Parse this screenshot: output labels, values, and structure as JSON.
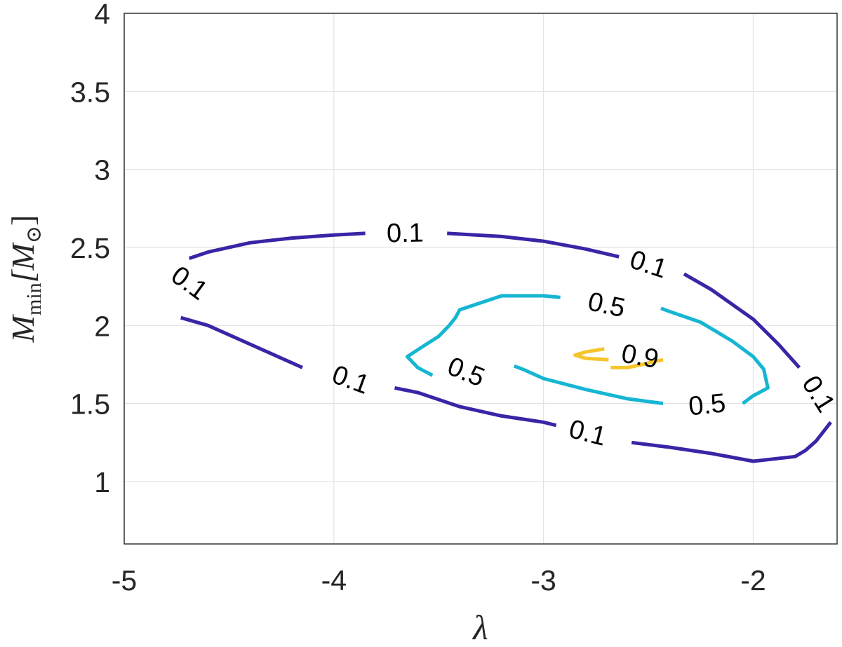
{
  "chart_data": {
    "type": "contour",
    "title": "",
    "xlabel": "λ",
    "ylabel_main": "M",
    "ylabel_sub": "min",
    "ylabel_unit": "[M",
    "ylabel_unit_symbol": "⊙",
    "ylabel_unit_close": "]",
    "xlim": [
      -5,
      -1.6
    ],
    "ylim": [
      0.6,
      4
    ],
    "xticks": [
      -5,
      -4,
      -3,
      -2
    ],
    "xtick_labels": [
      "-5",
      "-4",
      "-3",
      "-2"
    ],
    "yticks": [
      1,
      1.5,
      2,
      2.5,
      3,
      3.5,
      4
    ],
    "ytick_labels": [
      "1",
      "1.5",
      "2",
      "2.5",
      "3",
      "3.5",
      "4"
    ],
    "grid": true,
    "levels": [
      {
        "level": 0.1,
        "label": "0.1",
        "color": "#3b24a6",
        "segments": [
          [
            [
              -4.69,
              2.43
            ],
            [
              -4.6,
              2.47
            ],
            [
              -4.4,
              2.53
            ],
            [
              -4.2,
              2.56
            ],
            [
              -4.0,
              2.58
            ],
            [
              -3.85,
              2.59
            ]
          ],
          [
            [
              -3.46,
              2.59
            ],
            [
              -3.2,
              2.57
            ],
            [
              -3.0,
              2.54
            ],
            [
              -2.8,
              2.49
            ],
            [
              -2.64,
              2.44
            ]
          ],
          [
            [
              -2.33,
              2.33
            ],
            [
              -2.2,
              2.23
            ],
            [
              -2.0,
              2.04
            ],
            [
              -1.88,
              1.88
            ],
            [
              -1.78,
              1.73
            ]
          ],
          [
            [
              -1.63,
              1.38
            ],
            [
              -1.7,
              1.26
            ],
            [
              -1.75,
              1.2
            ],
            [
              -1.8,
              1.16
            ],
            [
              -2.0,
              1.13
            ],
            [
              -2.2,
              1.18
            ],
            [
              -2.4,
              1.22
            ],
            [
              -2.58,
              1.25
            ]
          ],
          [
            [
              -2.94,
              1.36
            ],
            [
              -3.0,
              1.38
            ],
            [
              -3.2,
              1.42
            ],
            [
              -3.4,
              1.48
            ],
            [
              -3.6,
              1.57
            ],
            [
              -3.71,
              1.6
            ]
          ],
          [
            [
              -4.15,
              1.73
            ],
            [
              -4.4,
              1.88
            ],
            [
              -4.6,
              2.0
            ],
            [
              -4.73,
              2.05
            ]
          ]
        ]
      },
      {
        "level": 0.5,
        "label": "0.5",
        "color": "#16b6d3",
        "segments": [
          [
            [
              -3.53,
              1.68
            ],
            [
              -3.6,
              1.73
            ],
            [
              -3.65,
              1.8
            ],
            [
              -3.57,
              1.87
            ],
            [
              -3.5,
              1.93
            ],
            [
              -3.45,
              2.0
            ],
            [
              -3.42,
              2.05
            ],
            [
              -3.4,
              2.1
            ],
            [
              -3.2,
              2.19
            ],
            [
              -3.0,
              2.19
            ],
            [
              -2.92,
              2.18
            ]
          ],
          [
            [
              -2.44,
              2.11
            ],
            [
              -2.4,
              2.09
            ],
            [
              -2.25,
              2.02
            ],
            [
              -2.1,
              1.9
            ],
            [
              -2.0,
              1.8
            ],
            [
              -1.95,
              1.72
            ],
            [
              -1.93,
              1.6
            ],
            [
              -2.0,
              1.55
            ],
            [
              -2.05,
              1.5
            ]
          ],
          [
            [
              -2.43,
              1.5
            ],
            [
              -2.6,
              1.53
            ],
            [
              -2.8,
              1.59
            ],
            [
              -3.0,
              1.66
            ],
            [
              -3.1,
              1.72
            ],
            [
              -3.14,
              1.74
            ]
          ]
        ]
      },
      {
        "level": 0.9,
        "label": "0.9",
        "color": "#f7c52b",
        "segments": [
          [
            [
              -2.69,
              1.78
            ],
            [
              -2.8,
              1.79
            ],
            [
              -2.85,
              1.81
            ],
            [
              -2.8,
              1.83
            ],
            [
              -2.71,
              1.85
            ]
          ],
          [
            [
              -2.68,
              1.73
            ],
            [
              -2.6,
              1.73
            ],
            [
              -2.53,
              1.75
            ],
            [
              -2.47,
              1.77
            ],
            [
              -2.43,
              1.78
            ]
          ]
        ]
      }
    ],
    "contour_labels": [
      {
        "text": "0.1",
        "x": -3.66,
        "y": 2.59,
        "angle": -1
      },
      {
        "text": "0.1",
        "x": -2.5,
        "y": 2.39,
        "angle": 18
      },
      {
        "text": "0.1",
        "x": -4.69,
        "y": 2.27,
        "angle": 36
      },
      {
        "text": "0.1",
        "x": -3.92,
        "y": 1.65,
        "angle": 20
      },
      {
        "text": "0.1",
        "x": -2.79,
        "y": 1.31,
        "angle": 14
      },
      {
        "text": "0.1",
        "x": -1.69,
        "y": 1.56,
        "angle": 58
      },
      {
        "text": "0.5",
        "x": -2.7,
        "y": 2.13,
        "angle": 12
      },
      {
        "text": "0.5",
        "x": -3.37,
        "y": 1.7,
        "angle": 22
      },
      {
        "text": "0.5",
        "x": -2.22,
        "y": 1.49,
        "angle": -6
      },
      {
        "text": "0.9",
        "x": -2.54,
        "y": 1.8,
        "angle": 10
      }
    ]
  }
}
